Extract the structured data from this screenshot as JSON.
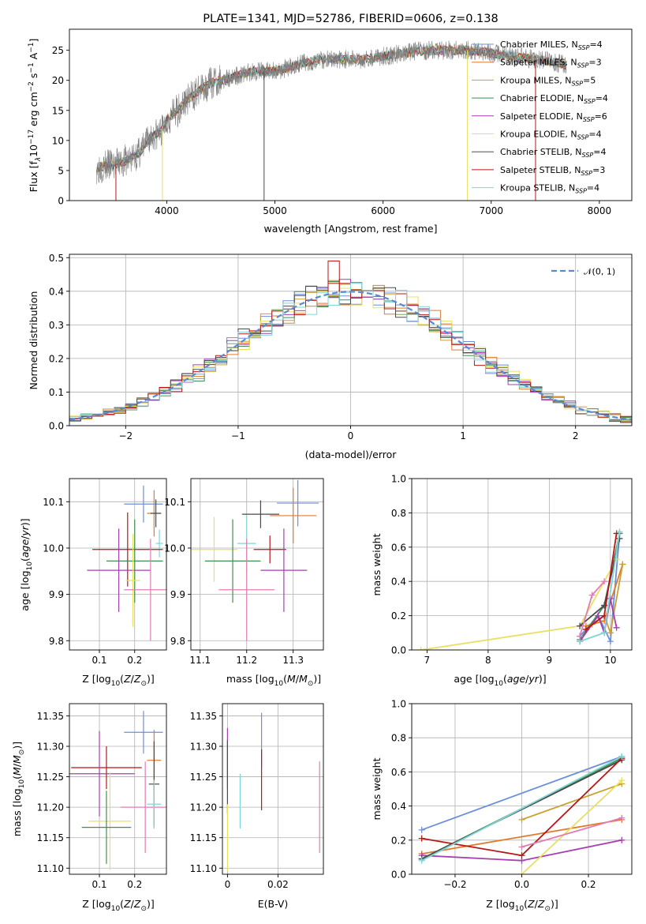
{
  "colors": {
    "Chabrier MILES": "#6b8fdb",
    "Salpeter MILES": "#e07b2e",
    "Kroupa MILES": "#c8a035",
    "Chabrier ELODIE": "#3f8f53",
    "Salpeter ELODIE": "#a63fb0",
    "Kroupa ELODIE": "#e8e060",
    "Chabrier STELIB": "#4a4a4a",
    "Salpeter STELIB": "#b51818",
    "Kroupa STELIB": "#7fd6d6",
    "pink": "#e27bb4",
    "spectrum_main": "#808080",
    "normal_curve": "#5a88d2"
  },
  "chart_data": [
    {
      "id": "spectrum",
      "type": "line",
      "title": "PLATE=1341, MJD=52786, FIBERID=0606, z=0.138",
      "xlabel": "wavelength [Angstrom, rest frame]",
      "ylabel": "Flux [f$_\\lambda$10$^{-17}$ erg cm$^{-2}$ s$^{-1}$ A$^{-1}$]",
      "ylabel_parts": [
        "Flux [f",
        "λ",
        "10",
        "−17",
        " erg cm",
        "−2",
        " s",
        "−1",
        " A",
        "−1",
        "]"
      ],
      "xlim": [
        3100,
        8300
      ],
      "ylim": [
        0,
        28.5
      ],
      "xticks": [
        4000,
        5000,
        6000,
        7000,
        8000
      ],
      "yticks": [
        0,
        5,
        10,
        15,
        20,
        25
      ],
      "grid": false,
      "legend_position": "top-right",
      "legend": [
        {
          "name": "Chabrier MILES",
          "nssp": "4"
        },
        {
          "name": "Salpeter MILES",
          "nssp": "3"
        },
        {
          "name": "Kroupa MILES",
          "nssp": "5"
        },
        {
          "name": "Chabrier ELODIE",
          "nssp": "4"
        },
        {
          "name": "Salpeter ELODIE",
          "nssp": "6"
        },
        {
          "name": "Kroupa ELODIE",
          "nssp": "4"
        },
        {
          "name": "Chabrier STELIB",
          "nssp": "4"
        },
        {
          "name": "Salpeter STELIB",
          "nssp": "3"
        },
        {
          "name": "Kroupa STELIB",
          "nssp": "4"
        }
      ],
      "continuum": {
        "x": [
          3350,
          3450,
          3550,
          3650,
          3750,
          3850,
          3950,
          4000,
          4100,
          4200,
          4300,
          4400,
          4600,
          4800,
          5000,
          5200,
          5400,
          5600,
          5800,
          6000,
          6200,
          6400,
          6600,
          6800,
          7000,
          7200,
          7400,
          7600,
          7700
        ],
        "y": [
          5.5,
          5.8,
          6.2,
          6.8,
          8.0,
          10.5,
          11.5,
          13.5,
          15.0,
          17.0,
          18.2,
          19.5,
          20.5,
          21.5,
          21.5,
          22.5,
          23.5,
          23.5,
          23.5,
          24.0,
          24.5,
          25.0,
          25.0,
          25.0,
          24.5,
          24.0,
          23.5,
          23.0,
          22.5
        ]
      },
      "spikes": [
        {
          "x": 3530,
          "series": "Salpeter STELIB",
          "y": 0
        },
        {
          "x": 3960,
          "series": "Kroupa ELODIE",
          "y": 0
        },
        {
          "x": 4900,
          "series": "Chabrier STELIB",
          "y": 0
        },
        {
          "x": 6780,
          "series": "Kroupa ELODIE",
          "y": 0
        },
        {
          "x": 7410,
          "series": "Salpeter STELIB",
          "y": 0
        }
      ]
    },
    {
      "id": "residuals",
      "type": "step",
      "xlabel": "(data-model)/error",
      "ylabel": "Normed distribution",
      "xlim": [
        -2.5,
        2.5
      ],
      "ylim": [
        0,
        0.51
      ],
      "xticks": [
        -2,
        -1,
        0,
        1,
        2
      ],
      "yticks": [
        0.0,
        0.1,
        0.2,
        0.3,
        0.4,
        0.5
      ],
      "grid": true,
      "legend_position": "top-right",
      "legend_label": "𝒩(0, 1)",
      "bin_width": 0.1
    },
    {
      "id": "age-vs-Z",
      "type": "errorbar",
      "xlabel_parts": [
        "Z [log",
        "10",
        "(",
        "Z",
        "/",
        "Z",
        "⊙",
        ")]"
      ],
      "ylabel_parts": [
        "age  [log",
        "10",
        "(",
        "age",
        "/",
        "yr",
        ")]"
      ],
      "xlim": [
        0.015,
        0.29
      ],
      "ylim": [
        9.78,
        10.15
      ],
      "xticks": [
        0.1,
        0.2
      ],
      "yticks": [
        9.8,
        9.9,
        10.0,
        10.1
      ],
      "grid": true,
      "points": [
        {
          "series": "Chabrier MILES",
          "x": 0.225,
          "y": 10.095,
          "xerr": 0.055,
          "yerr": 0.04
        },
        {
          "series": "Salpeter MILES",
          "x": 0.255,
          "y": 10.075,
          "xerr": 0.02,
          "yerr": 0.05
        },
        {
          "series": "Chabrier STELIB",
          "x": 0.26,
          "y": 10.075,
          "xerr": 0.015,
          "yerr": 0.03
        },
        {
          "series": "Kroupa STELIB",
          "x": 0.27,
          "y": 10.01,
          "xerr": 0.01,
          "yerr": 0.03
        },
        {
          "series": "Salpeter STELIB",
          "x": 0.18,
          "y": 9.997,
          "xerr": 0.1,
          "yerr": 0.08
        },
        {
          "series": "Chabrier ELODIE",
          "x": 0.2,
          "y": 9.972,
          "xerr": 0.08,
          "yerr": 0.09
        },
        {
          "series": "Salpeter ELODIE",
          "x": 0.155,
          "y": 9.952,
          "xerr": 0.09,
          "yerr": 0.09
        },
        {
          "series": "Kroupa ELODIE",
          "x": 0.195,
          "y": 9.93,
          "xerr": 0.02,
          "yerr": 0.1
        },
        {
          "series": "pink",
          "x": 0.245,
          "y": 9.91,
          "xerr": 0.075,
          "yerr": 0.11
        }
      ]
    },
    {
      "id": "age-vs-mass",
      "type": "errorbar",
      "xlabel_parts": [
        "mass [log",
        "10",
        "(",
        "M",
        "/",
        "M",
        "⊙",
        ")]"
      ],
      "xlim": [
        11.08,
        11.365
      ],
      "ylim": [
        9.78,
        10.15
      ],
      "xticks": [
        11.1,
        11.2,
        11.3
      ],
      "yticks": [
        9.8,
        9.9,
        10.0,
        10.1
      ],
      "grid": true,
      "points": [
        {
          "series": "Chabrier MILES",
          "x": 11.31,
          "y": 10.097,
          "xerr": 0.045,
          "yerr": 0.05
        },
        {
          "series": "Salpeter MILES",
          "x": 11.3,
          "y": 10.07,
          "xerr": 0.05,
          "yerr": 0.06
        },
        {
          "series": "Chabrier STELIB",
          "x": 11.23,
          "y": 10.073,
          "xerr": 0.04,
          "yerr": 0.03
        },
        {
          "series": "Kroupa STELIB",
          "x": 11.2,
          "y": 10.01,
          "xerr": 0.02,
          "yerr": 0.06
        },
        {
          "series": "Salpeter STELIB",
          "x": 11.25,
          "y": 9.997,
          "xerr": 0.035,
          "yerr": 0.03
        },
        {
          "series": "Kroupa ELODIE",
          "x": 11.13,
          "y": 9.997,
          "xerr": 0.05,
          "yerr": 0.07
        },
        {
          "series": "Chabrier ELODIE",
          "x": 11.17,
          "y": 9.972,
          "xerr": 0.06,
          "yerr": 0.09
        },
        {
          "series": "Salpeter ELODIE",
          "x": 11.28,
          "y": 9.952,
          "xerr": 0.05,
          "yerr": 0.09
        },
        {
          "series": "pink",
          "x": 11.2,
          "y": 9.91,
          "xerr": 0.06,
          "yerr": 0.11
        }
      ]
    },
    {
      "id": "weight-vs-age",
      "type": "line",
      "xlabel_parts": [
        "age  [log",
        "10",
        "(",
        "age",
        "/",
        "yr",
        ")]"
      ],
      "ylabel": "mass weight",
      "xlim": [
        6.75,
        10.35
      ],
      "ylim": [
        0.0,
        1.0
      ],
      "xticks": [
        7,
        8,
        9,
        10
      ],
      "yticks": [
        0.0,
        0.2,
        0.4,
        0.6,
        0.8,
        1.0
      ],
      "grid": true,
      "series": [
        {
          "series": "Chabrier MILES",
          "x": [
            9.5,
            9.8,
            10.0,
            10.15
          ],
          "y": [
            0.08,
            0.2,
            0.05,
            0.68
          ]
        },
        {
          "series": "Salpeter MILES",
          "x": [
            9.6,
            9.9,
            10.2
          ],
          "y": [
            0.14,
            0.17,
            0.5
          ]
        },
        {
          "series": "Kroupa MILES",
          "x": [
            9.5,
            9.7,
            9.9,
            10.0,
            10.2
          ],
          "y": [
            0.05,
            0.15,
            0.2,
            0.1,
            0.5
          ]
        },
        {
          "series": "Chabrier ELODIE",
          "x": [
            9.5,
            9.9,
            10.15
          ],
          "y": [
            0.06,
            0.26,
            0.68
          ]
        },
        {
          "series": "Salpeter ELODIE",
          "x": [
            9.5,
            9.8,
            9.9,
            10.0,
            10.1
          ],
          "y": [
            0.05,
            0.2,
            0.1,
            0.3,
            0.13
          ]
        },
        {
          "series": "Kroupa ELODIE",
          "x": [
            6.9,
            9.5,
            10.1
          ],
          "y": [
            0.0,
            0.14,
            0.53
          ]
        },
        {
          "series": "Chabrier STELIB",
          "x": [
            9.5,
            9.9,
            10.15
          ],
          "y": [
            0.14,
            0.26,
            0.65
          ]
        },
        {
          "series": "Salpeter STELIB",
          "x": [
            9.6,
            9.9,
            10.1
          ],
          "y": [
            0.12,
            0.2,
            0.68
          ]
        },
        {
          "series": "Kroupa STELIB",
          "x": [
            9.5,
            9.9,
            10.15
          ],
          "y": [
            0.05,
            0.1,
            0.69
          ]
        },
        {
          "series": "pink",
          "x": [
            9.5,
            9.7,
            9.9
          ],
          "y": [
            0.08,
            0.32,
            0.4
          ]
        }
      ]
    },
    {
      "id": "mass-vs-Z",
      "type": "errorbar",
      "xlabel_parts": [
        "Z [log",
        "10",
        "(",
        "Z",
        "/",
        "Z",
        "⊙",
        ")]"
      ],
      "ylabel_parts": [
        "mass [log",
        "10",
        "(",
        "M",
        "/",
        "M",
        "⊙",
        ")]"
      ],
      "xlim": [
        0.015,
        0.29
      ],
      "ylim": [
        11.09,
        11.37
      ],
      "xticks": [
        0.1,
        0.2
      ],
      "yticks": [
        11.1,
        11.15,
        11.2,
        11.25,
        11.3,
        11.35
      ],
      "grid": true,
      "points": [
        {
          "series": "Chabrier MILES",
          "x": 0.225,
          "y": 11.323,
          "xerr": 0.055,
          "yerr": 0.035
        },
        {
          "series": "Salpeter MILES",
          "x": 0.255,
          "y": 11.277,
          "xerr": 0.02,
          "yerr": 0.05
        },
        {
          "series": "Chabrier STELIB",
          "x": 0.255,
          "y": 11.238,
          "xerr": 0.015,
          "yerr": 0.07
        },
        {
          "series": "Salpeter STELIB",
          "x": 0.12,
          "y": 11.265,
          "xerr": 0.1,
          "yerr": 0.035
        },
        {
          "series": "Salpeter ELODIE",
          "x": 0.1,
          "y": 11.255,
          "xerr": 0.1,
          "yerr": 0.07
        },
        {
          "series": "pink",
          "x": 0.23,
          "y": 11.2,
          "xerr": 0.07,
          "yerr": 0.075
        },
        {
          "series": "Kroupa STELIB",
          "x": 0.255,
          "y": 11.205,
          "xerr": 0.02,
          "yerr": 0.04
        },
        {
          "series": "Kroupa ELODIE",
          "x": 0.13,
          "y": 11.177,
          "xerr": 0.06,
          "yerr": 0.08
        },
        {
          "series": "Chabrier ELODIE",
          "x": 0.12,
          "y": 11.167,
          "xerr": 0.07,
          "yerr": 0.06
        }
      ]
    },
    {
      "id": "EBV",
      "type": "errorbar",
      "xlabel": "E(B-V)",
      "xlim": [
        -0.002,
        0.038
      ],
      "ylim": [
        11.09,
        11.37
      ],
      "xticks": [
        0.0,
        0.02
      ],
      "yticks": [
        11.1,
        11.15,
        11.2,
        11.25,
        11.3,
        11.35
      ],
      "grid": true,
      "points": [
        {
          "series": "Salpeter ELODIE",
          "x": 0.0,
          "y": 11.28,
          "yerr": 0.05
        },
        {
          "series": "Chabrier STELIB",
          "x": 0.0,
          "y": 11.25,
          "yerr": 0.06
        },
        {
          "series": "Kroupa ELODIE",
          "x": 0.0,
          "y": 11.15,
          "yerr": 0.055
        },
        {
          "series": "Kroupa STELIB",
          "x": 0.005,
          "y": 11.21,
          "yerr": 0.045
        },
        {
          "series": "Chabrier MILES",
          "x": 0.0135,
          "y": 11.31,
          "yerr": 0.045
        },
        {
          "series": "Salpeter STELIB",
          "x": 0.0135,
          "y": 11.245,
          "yerr": 0.05
        },
        {
          "series": "pink",
          "x": 0.0365,
          "y": 11.2,
          "yerr": 0.075
        }
      ]
    },
    {
      "id": "weight-vs-Z",
      "type": "line",
      "xlabel_parts": [
        "Z [log",
        "10",
        "(",
        "Z",
        "/",
        "Z",
        "⊙",
        ")]"
      ],
      "ylabel": "mass weight",
      "xlim": [
        -0.33,
        0.33
      ],
      "ylim": [
        0.0,
        1.0
      ],
      "xticks": [
        -0.2,
        0.0,
        0.2
      ],
      "yticks": [
        0.0,
        0.2,
        0.4,
        0.6,
        0.8,
        1.0
      ],
      "grid": true,
      "series": [
        {
          "series": "Chabrier MILES",
          "x": [
            -0.3,
            0.3
          ],
          "y": [
            0.26,
            0.69
          ]
        },
        {
          "series": "Salpeter MILES",
          "x": [
            -0.3,
            0.3
          ],
          "y": [
            0.12,
            0.32
          ]
        },
        {
          "series": "Kroupa MILES",
          "x": [
            0.0,
            0.3
          ],
          "y": [
            0.32,
            0.53
          ]
        },
        {
          "series": "Chabrier ELODIE",
          "x": [
            -0.3,
            0.3
          ],
          "y": [
            0.09,
            0.68
          ]
        },
        {
          "series": "Salpeter ELODIE",
          "x": [
            -0.3,
            0.0,
            0.3
          ],
          "y": [
            0.11,
            0.08,
            0.2
          ]
        },
        {
          "series": "Kroupa ELODIE",
          "x": [
            0.0,
            0.3
          ],
          "y": [
            0.0,
            0.55
          ]
        },
        {
          "series": "Chabrier STELIB",
          "x": [
            -0.3,
            0.3
          ],
          "y": [
            0.09,
            0.67
          ]
        },
        {
          "series": "Salpeter STELIB",
          "x": [
            -0.3,
            0.0,
            0.3
          ],
          "y": [
            0.21,
            0.11,
            0.68
          ]
        },
        {
          "series": "Kroupa STELIB",
          "x": [
            -0.3,
            0.3
          ],
          "y": [
            0.08,
            0.69
          ]
        },
        {
          "series": "pink",
          "x": [
            0.0,
            0.3
          ],
          "y": [
            0.16,
            0.33
          ]
        }
      ]
    }
  ]
}
